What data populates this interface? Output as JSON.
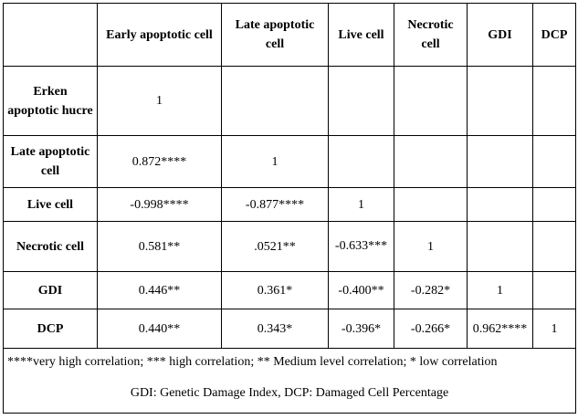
{
  "table": {
    "columns": [
      "",
      "Early apoptotic cell",
      "Late apoptotic cell",
      "Live cell",
      "Necrotic cell",
      "GDI",
      "DCP"
    ],
    "rows": [
      {
        "label": "Erken apoptotic hucre",
        "cells": [
          "1",
          "",
          "",
          "",
          "",
          ""
        ]
      },
      {
        "label": "Late apoptotic cell",
        "cells": [
          "0.872****",
          "1",
          "",
          "",
          "",
          ""
        ]
      },
      {
        "label": "Live cell",
        "cells": [
          "-0.998****",
          "-0.877****",
          "1",
          "",
          "",
          ""
        ]
      },
      {
        "label": "Necrotic cell",
        "cells": [
          "0.581**",
          ".0521**",
          "-0.633***",
          "1",
          "",
          ""
        ]
      },
      {
        "label": "GDI",
        "cells": [
          "0.446**",
          "0.361*",
          "-0.400**",
          "-0.282*",
          "1",
          ""
        ]
      },
      {
        "label": "DCP",
        "cells": [
          "0.440**",
          "0.343*",
          "-0.396*",
          "-0.266*",
          "0.962****",
          "1"
        ]
      }
    ]
  },
  "notes": {
    "legend": "****very high correlation;  *** high correlation;  ** Medium level correlation;  * low correlation",
    "abbreviations": "GDI: Genetic Damage Index, DCP: Damaged Cell Percentage"
  }
}
